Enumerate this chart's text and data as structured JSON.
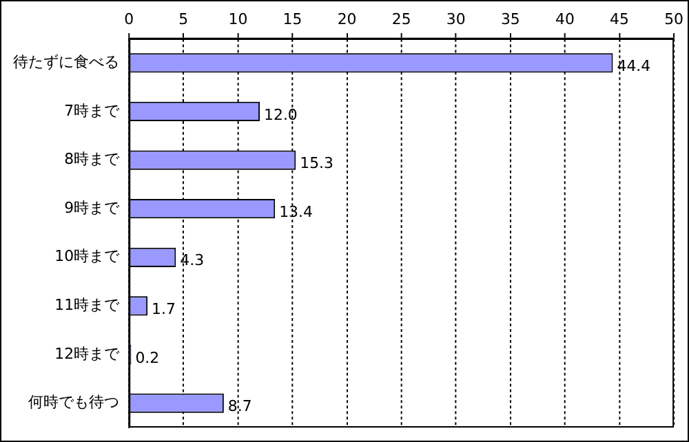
{
  "chart_data": {
    "type": "bar",
    "orientation": "horizontal",
    "categories": [
      "待たずに食べる",
      "7時まで",
      "8時まで",
      "9時まで",
      "10時まで",
      "11時まで",
      "12時まで",
      "何時でも待つ"
    ],
    "values": [
      44.4,
      12.0,
      15.3,
      13.4,
      4.3,
      1.7,
      0.2,
      8.7
    ],
    "value_labels": [
      "44.4",
      "12.0",
      "15.3",
      "13.4",
      "4.3",
      "1.7",
      "0.2",
      "8.7"
    ],
    "color": "#9999ff",
    "xlim": [
      0,
      50
    ],
    "xticks": [
      0,
      5,
      10,
      15,
      20,
      25,
      30,
      35,
      40,
      45,
      50
    ],
    "grid": "x",
    "legend": false
  }
}
